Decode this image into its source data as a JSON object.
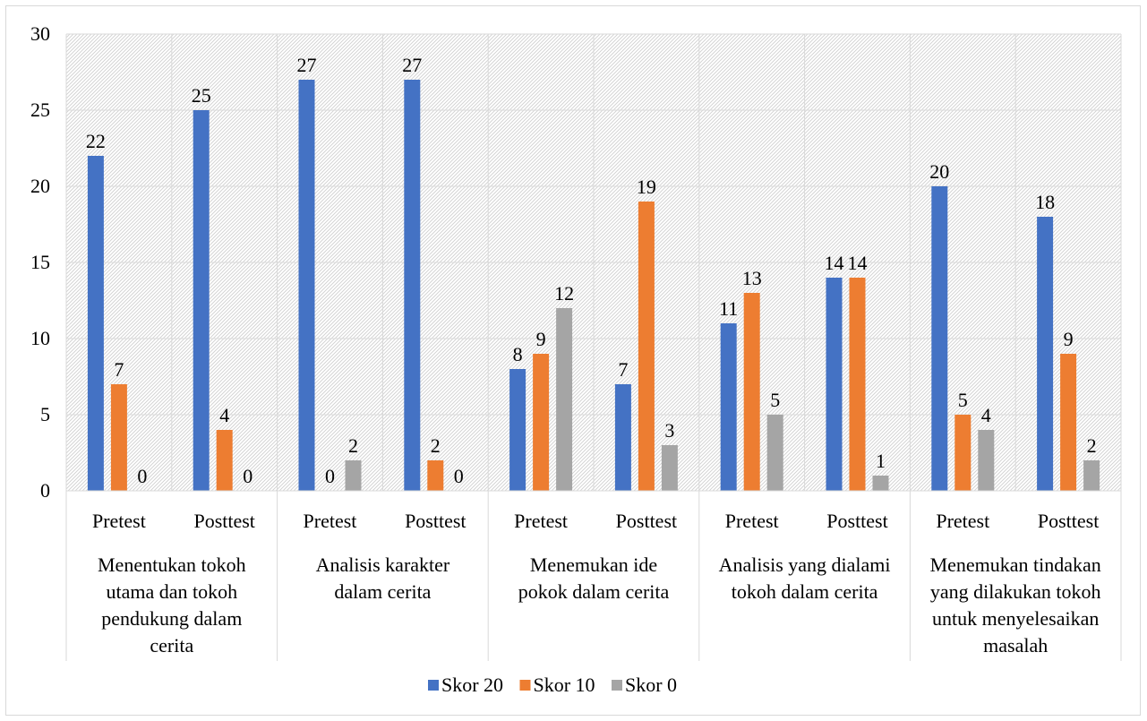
{
  "chart_data": {
    "type": "bar",
    "title": "",
    "xlabel": "",
    "ylabel": "",
    "ylim": [
      0,
      30
    ],
    "yticks": [
      0,
      5,
      10,
      15,
      20,
      25,
      30
    ],
    "grid": true,
    "legend_position": "bottom",
    "groups": [
      {
        "label": "Menentukan tokoh utama dan tokoh pendukung dalam cerita",
        "label_lines": [
          "Menentukan tokoh",
          "utama dan tokoh",
          "pendukung dalam",
          "cerita"
        ],
        "subcategories": [
          "Pretest",
          "Posttest"
        ]
      },
      {
        "label": "Analisis karakter dalam cerita",
        "label_lines": [
          "Analisis karakter",
          "dalam cerita"
        ],
        "subcategories": [
          "Pretest",
          "Posttest"
        ]
      },
      {
        "label": "Menemukan ide pokok dalam cerita",
        "label_lines": [
          "Menemukan ide",
          "pokok dalam cerita"
        ],
        "subcategories": [
          "Pretest",
          "Posttest"
        ]
      },
      {
        "label": "Analisis yang dialami tokoh dalam cerita",
        "label_lines": [
          "Analisis yang dialami",
          "tokoh dalam cerita"
        ],
        "subcategories": [
          "Pretest",
          "Posttest"
        ]
      },
      {
        "label": "Menemukan tindakan yang dilakukan tokoh untuk menyelesaikan masalah",
        "label_lines": [
          "Menemukan tindakan",
          "yang dilakukan tokoh",
          "untuk menyelesaikan",
          "masalah"
        ],
        "subcategories": [
          "Pretest",
          "Posttest"
        ]
      }
    ],
    "categories": [
      "Pretest",
      "Posttest",
      "Pretest",
      "Posttest",
      "Pretest",
      "Posttest",
      "Pretest",
      "Posttest",
      "Pretest",
      "Posttest"
    ],
    "series": [
      {
        "name": "Skor 20",
        "color": "#4472c4",
        "values": [
          22,
          25,
          27,
          27,
          8,
          7,
          11,
          14,
          20,
          18
        ]
      },
      {
        "name": "Skor 10",
        "color": "#ed7d31",
        "values": [
          7,
          4,
          0,
          2,
          9,
          19,
          13,
          14,
          5,
          9
        ]
      },
      {
        "name": "Skor 0",
        "color": "#a5a5a5",
        "values": [
          0,
          0,
          2,
          0,
          12,
          3,
          5,
          1,
          4,
          2
        ]
      }
    ]
  }
}
